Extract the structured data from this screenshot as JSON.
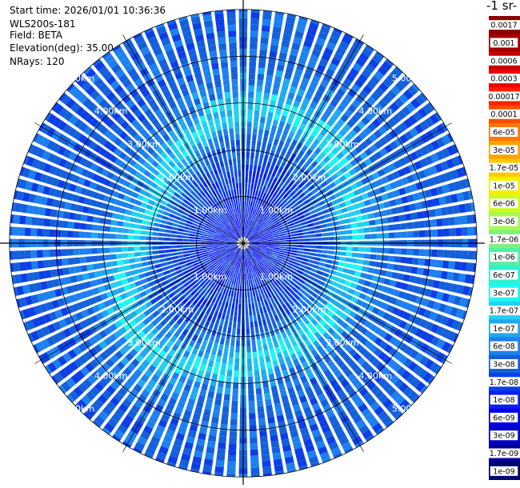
{
  "info": {
    "start_time": "Start time: 2026/01/01 10:36:36",
    "instrument": "WLS200s-181",
    "field": "Field: BETA",
    "elevation": "Elevation(deg): 35.00",
    "nrays": "NRays: 120"
  },
  "colorbar": {
    "title_fragment": "-1 sr-",
    "labels": [
      "0.0017",
      "0.001",
      "0.0006",
      "0.0003",
      "0.00017",
      "0.0001",
      "6e-05",
      "3e-05",
      "1.7e-05",
      "1e-05",
      "6e-06",
      "3e-06",
      "1.7e-06",
      "1e-06",
      "6e-07",
      "3e-07",
      "1.7e-07",
      "1e-07",
      "6e-08",
      "3e-08",
      "1.7e-08",
      "1e-08",
      "6e-09",
      "3e-09",
      "1.7e-09",
      "1e-09"
    ],
    "colors": [
      "#8b0000",
      "#a30000",
      "#c80000",
      "#ee0000",
      "#ff2000",
      "#ff4a00",
      "#ff7800",
      "#ffa000",
      "#ffc800",
      "#f4ee00",
      "#cdfa20",
      "#a6fa52",
      "#7ef07e",
      "#52f0a6",
      "#30f0d2",
      "#19f8f2",
      "#21d2f0",
      "#1eaaf0",
      "#1d80f0",
      "#1460dc",
      "#0c3ee6",
      "#0820ee",
      "#0000e6",
      "#0000c0",
      "#000096",
      "#00006e"
    ]
  },
  "range_labels": [
    "1.00km",
    "2.00km",
    "3.00km",
    "4.00km",
    "5.00km"
  ],
  "chart_data": {
    "type": "ppi-polar",
    "field": "BETA",
    "elevation_deg": 35.0,
    "nrays": 120,
    "max_range_km": 5.0,
    "range_ring_step_km": 1.0,
    "color_scale": "log",
    "profile": {
      "range_km": [
        0.0,
        0.5,
        1.0,
        1.5,
        2.0,
        2.25,
        2.5,
        2.75,
        3.0,
        3.5,
        4.0,
        4.5,
        5.0
      ],
      "beta": [
        1e-08,
        1e-08,
        1.5e-08,
        2e-08,
        4e-08,
        1e-07,
        2e-07,
        1.5e-07,
        6e-08,
        4e-08,
        3e-08,
        3e-08,
        3e-08
      ]
    }
  }
}
